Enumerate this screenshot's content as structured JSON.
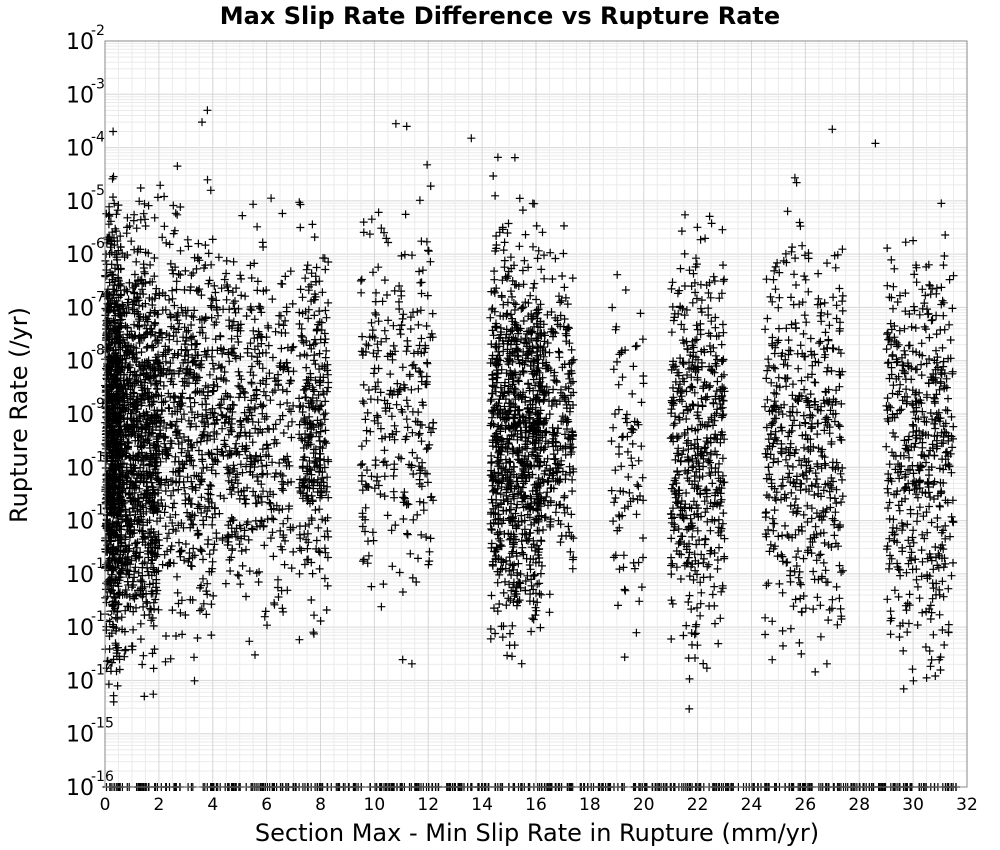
{
  "chart_data": {
    "type": "scatter",
    "title": "Max Slip Rate Difference vs Rupture Rate",
    "xlabel": "Section Max - Min Slip Rate in Rupture (mm/yr)",
    "ylabel": "Rupture Rate (/yr)",
    "xlim": [
      0,
      32
    ],
    "ylim": [
      1e-16,
      0.01
    ],
    "yscale": "log",
    "grid": true,
    "marker": "+",
    "marker_color": "#000000",
    "x_ticks": [
      "0",
      "2",
      "4",
      "6",
      "8",
      "10",
      "12",
      "14",
      "16",
      "18",
      "20",
      "22",
      "24",
      "26",
      "28",
      "30",
      "32"
    ],
    "y_ticks": [
      {
        "base": "10",
        "exp": "-16"
      },
      {
        "base": "10",
        "exp": "-15"
      },
      {
        "base": "10",
        "exp": "-14"
      },
      {
        "base": "10",
        "exp": "-13"
      },
      {
        "base": "10",
        "exp": "-12"
      },
      {
        "base": "10",
        "exp": "-11"
      },
      {
        "base": "10",
        "exp": "-10"
      },
      {
        "base": "10",
        "exp": "-9"
      },
      {
        "base": "10",
        "exp": "-8"
      },
      {
        "base": "10",
        "exp": "-7"
      },
      {
        "base": "10",
        "exp": "-6"
      },
      {
        "base": "10",
        "exp": "-5"
      },
      {
        "base": "10",
        "exp": "-4"
      },
      {
        "base": "10",
        "exp": "-3"
      },
      {
        "base": "10",
        "exp": "-2"
      }
    ],
    "clusters": [
      {
        "x_range": [
          0.0,
          0.6
        ],
        "y_log_range": [
          -15.2,
          -3.8
        ],
        "density": "very high"
      },
      {
        "x_range": [
          0.6,
          2.0
        ],
        "y_log_range": [
          -15.0,
          -3.9
        ],
        "density": "very high"
      },
      {
        "x_range": [
          2.0,
          4.0
        ],
        "y_log_range": [
          -14.8,
          -3.6
        ],
        "density": "high"
      },
      {
        "x_range": [
          4.0,
          7.0
        ],
        "y_log_range": [
          -14.2,
          -4.3
        ],
        "density": "high"
      },
      {
        "x_range": [
          7.2,
          8.3
        ],
        "y_log_range": [
          -14.0,
          -4.4
        ],
        "density": "medium"
      },
      {
        "x_range": [
          9.5,
          12.2
        ],
        "y_log_range": [
          -14.0,
          -3.7
        ],
        "density": "medium"
      },
      {
        "x_range": [
          14.3,
          16.2
        ],
        "y_log_range": [
          -14.6,
          -4.0
        ],
        "density": "very high"
      },
      {
        "x_range": [
          16.0,
          17.4
        ],
        "y_log_range": [
          -13.5,
          -5.0
        ],
        "density": "medium"
      },
      {
        "x_range": [
          18.8,
          20.0
        ],
        "y_log_range": [
          -14.0,
          -5.6
        ],
        "density": "low"
      },
      {
        "x_range": [
          21.0,
          23.0
        ],
        "y_log_range": [
          -14.9,
          -4.2
        ],
        "density": "high"
      },
      {
        "x_range": [
          24.5,
          27.4
        ],
        "y_log_range": [
          -14.9,
          -4.0
        ],
        "density": "high"
      },
      {
        "x_range": [
          29.0,
          31.5
        ],
        "y_log_range": [
          -15.2,
          -4.1
        ],
        "density": "high"
      }
    ],
    "floor_points": {
      "y": 1e-16,
      "x_range": [
        0,
        31.6
      ],
      "note": "dense row of points at the 10^-16 floor"
    },
    "outliers": [
      {
        "x": 3.8,
        "y": 0.0005
      },
      {
        "x": 3.6,
        "y": 0.0003
      },
      {
        "x": 10.8,
        "y": 0.00028
      },
      {
        "x": 11.2,
        "y": 0.00025
      },
      {
        "x": 27.0,
        "y": 0.00022
      },
      {
        "x": 28.6,
        "y": 0.00012
      },
      {
        "x": 13.6,
        "y": 0.00015
      },
      {
        "x": 0.3,
        "y": 0.0002
      }
    ]
  }
}
